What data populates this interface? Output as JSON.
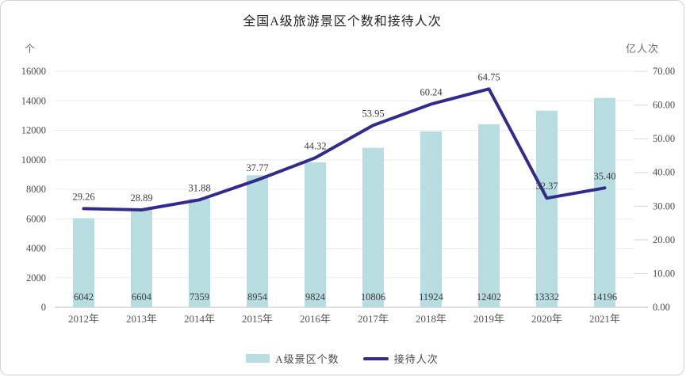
{
  "page": {
    "title": "全国A级旅游景区个数和接待人次"
  },
  "chart_data": {
    "type": "combo",
    "title": "全国A级旅游景区个数和接待人次",
    "categories": [
      "2012年",
      "2013年",
      "2014年",
      "2015年",
      "2016年",
      "2017年",
      "2018年",
      "2019年",
      "2020年",
      "2021年"
    ],
    "series": [
      {
        "name": "A级景区个数",
        "type": "bar",
        "axis": "left",
        "color": "#b8dde1",
        "values": [
          6042,
          6604,
          7359,
          8954,
          9824,
          10806,
          11924,
          12402,
          13332,
          14196
        ]
      },
      {
        "name": "接待人次",
        "type": "line",
        "axis": "right",
        "color": "#312c8c",
        "values": [
          29.26,
          28.89,
          31.88,
          37.77,
          44.32,
          53.95,
          60.24,
          64.75,
          32.37,
          35.4
        ]
      }
    ],
    "left_axis": {
      "unit": "个",
      "min": 0,
      "max": 16000,
      "step": 2000
    },
    "right_axis": {
      "unit": "亿人次",
      "min": 0,
      "max": 70,
      "step": 10,
      "decimals": 2
    },
    "grid": true,
    "legend_position": "bottom",
    "legend": [
      {
        "label": "A级景区个数",
        "swatch": "bar",
        "color": "#b8dde1"
      },
      {
        "label": "接待人次",
        "swatch": "line",
        "color": "#312c8c"
      }
    ],
    "colors": {
      "bar": "#b8dde1",
      "line": "#312c8c",
      "grid": "#ececec",
      "axis": "#c9c9c9",
      "tick": "#d8d8d8",
      "text": "#4a4a4a",
      "value_text": "#3d3d3d",
      "title_text": "#1f1f1f"
    }
  }
}
